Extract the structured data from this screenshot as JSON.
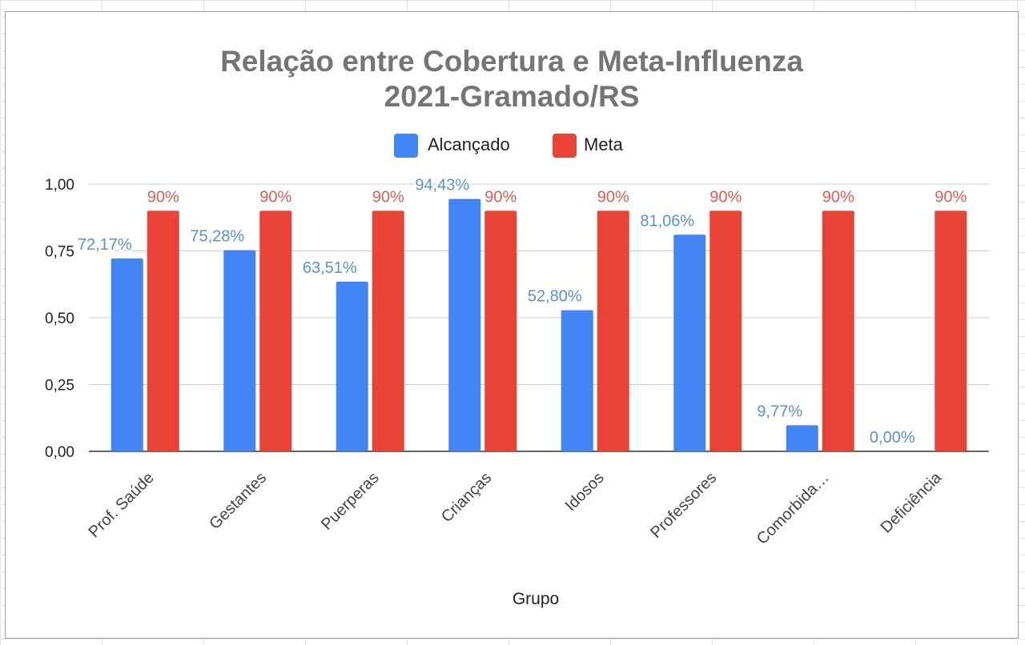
{
  "chart_data": {
    "type": "bar",
    "title": "Relação entre Cobertura e Meta-Influenza 2021-Gramado/RS",
    "title_lines": [
      "Relação entre Cobertura e Meta-Influenza",
      "2021-Gramado/RS"
    ],
    "xlabel": "Grupo",
    "ylabel": "",
    "categories": [
      "Prof. Saúde",
      "Gestantes",
      "Puerperas",
      "Crianças",
      "Idosos",
      "Professores",
      "Comorbida…",
      "Deficiência"
    ],
    "series": [
      {
        "name": "Alcançado",
        "color": "#4285f4",
        "values": [
          0.7217,
          0.7528,
          0.6351,
          0.9443,
          0.528,
          0.8106,
          0.0977,
          0.0
        ],
        "labels": [
          "72,17%",
          "75,28%",
          "63,51%",
          "94,43%",
          "52,80%",
          "81,06%",
          "9,77%",
          "0,00%"
        ]
      },
      {
        "name": "Meta",
        "color": "#ea4335",
        "values": [
          0.9,
          0.9,
          0.9,
          0.9,
          0.9,
          0.9,
          0.9,
          0.9
        ],
        "labels": [
          "90%",
          "90%",
          "90%",
          "90%",
          "90%",
          "90%",
          "90%",
          "90%"
        ]
      }
    ],
    "yticks": [
      "0,00",
      "0,25",
      "0,50",
      "0,75",
      "1,00"
    ],
    "ytick_values": [
      0,
      0.25,
      0.5,
      0.75,
      1.0
    ],
    "ylim": [
      0,
      1.0
    ],
    "grid": true,
    "legend_position": "top-center"
  }
}
